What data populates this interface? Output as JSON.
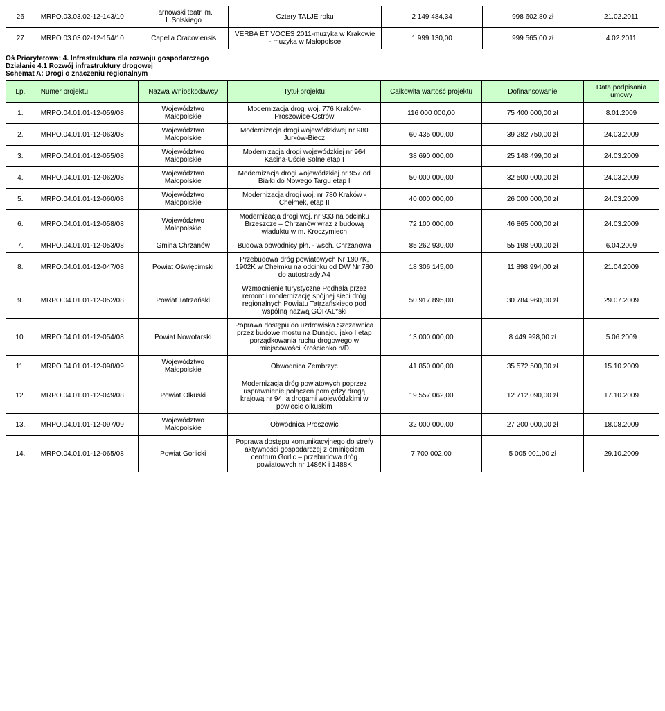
{
  "topRows": [
    {
      "lp": "26",
      "num": "MRPO.03.03.02-12-143/10",
      "wn": "Tarnowski teatr im. L.Solskiego",
      "title": "Cztery TALJE roku",
      "val": "2 149 484,34",
      "dof": "998 602,80 zł",
      "date": "21.02.2011"
    },
    {
      "lp": "27",
      "num": "MRPO.03.03.02-12-154/10",
      "wn": "Capella Cracoviensis",
      "title": "VERBA ET VOCES 2011-muzyka w Krakowie - muzyka w Małopolsce",
      "val": "1 999 130,00",
      "dof": "999 565,00 zł",
      "date": "4.02.2011"
    }
  ],
  "section": {
    "line1": "Oś Priorytetowa: 4. Infrastruktura dla rozwoju gospodarczego",
    "line2": "Działanie 4.1 Rozwój infrastruktury drogowej",
    "line3": "Schemat A: Drogi o znaczeniu regionalnym"
  },
  "headers": {
    "lp": "Lp.",
    "num": "Numer projektu",
    "wn": "Nazwa Wnioskodawcy",
    "title": "Tytuł projektu",
    "val": "Całkowita wartość projektu",
    "dof": "Dofinansowanie",
    "date": "Data podpisania umowy"
  },
  "rows": [
    {
      "lp": "1.",
      "num": "MRPO.04.01.01-12-059/08",
      "wn": "Województwo Małopolskie",
      "title": "Modernizacja drogi woj. 776 Kraków-Proszowice-Ostrów",
      "val": "116 000 000,00",
      "dof": "75 400 000,00 zł",
      "date": "8.01.2009"
    },
    {
      "lp": "2.",
      "num": "MRPO.04.01.01-12-063/08",
      "wn": "Województwo Małopolskie",
      "title": "Modernizacja drogi wojewódzkiwej nr 980 Jurków-Biecz",
      "val": "60 435 000,00",
      "dof": "39 282 750,00 zł",
      "date": "24.03.2009"
    },
    {
      "lp": "3.",
      "num": "MRPO.04.01.01-12-055/08",
      "wn": "Województwo Małopolskie",
      "title": "Modernizacja drogi wojewódzkiej nr 964 Kasina-Uście Solne etap I",
      "val": "38 690 000,00",
      "dof": "25 148 499,00 zł",
      "date": "24.03.2009"
    },
    {
      "lp": "4.",
      "num": "MRPO.04.01.01-12-062/08",
      "wn": "Województwo Małopolskie",
      "title": "Modernizacja drogi wojewódzkiej nr 957 od Białki do Nowego Targu etap I",
      "val": "50 000 000,00",
      "dof": "32 500 000,00 zł",
      "date": "24.03.2009"
    },
    {
      "lp": "5.",
      "num": "MRPO.04.01.01-12-060/08",
      "wn": "Województwo Małopolskie",
      "title": "Modernizacja drogi woj. nr 780 Kraków - Chełmek, etap II",
      "val": "40 000 000,00",
      "dof": "26 000 000,00 zł",
      "date": "24.03.2009"
    },
    {
      "lp": "6.",
      "num": "MRPO.04.01.01-12-058/08",
      "wn": "Województwo Małopolskie",
      "title": "Modernizacja drogi woj. nr 933 na odcinku Brzeszcze – Chrzanów wraz z budową wiaduktu w m. Kroczymiech",
      "val": "72 100 000,00",
      "dof": "46 865 000,00 zł",
      "date": "24.03.2009"
    },
    {
      "lp": "7.",
      "num": "MRPO.04.01.01-12-053/08",
      "wn": "Gmina Chrzanów",
      "title": "Budowa obwodnicy płn. - wsch. Chrzanowa",
      "val": "85 262 930,00",
      "dof": "55 198 900,00 zł",
      "date": "6.04.2009"
    },
    {
      "lp": "8.",
      "num": "MRPO.04.01.01-12-047/08",
      "wn": "Powiat Oświęcimski",
      "title": "Przebudowa dróg powiatowych Nr 1907K, 1902K w Chełmku na odcinku od DW Nr 780 do autostrady A4",
      "val": "18 306 145,00",
      "dof": "11 898 994,00 zł",
      "date": "21.04.2009"
    },
    {
      "lp": "9.",
      "num": "MRPO.04.01.01-12-052/08",
      "wn": "Powiat Tatrzański",
      "title": "Wzmocnienie turystyczne Podhala przez remont i modernizację spójnej sieci dróg regionalnych Powiatu Tatrzańskiego pod wspólną nazwą GÓRAL*ski",
      "val": "50 917 895,00",
      "dof": "30 784 960,00 zł",
      "date": "29.07.2009"
    },
    {
      "lp": "10.",
      "num": "MRPO.04.01.01-12-054/08",
      "wn": "Powiat Nowotarski",
      "title": "Poprawa dostępu do uzdrowiska Szczawnica przez budowę mostu na Dunajcu jako I etap porządkowania ruchu drogowego w miejscowości Krościenko n/D",
      "val": "13 000 000,00",
      "dof": "8 449 998,00 zł",
      "date": "5.06.2009"
    },
    {
      "lp": "11.",
      "num": "MRPO.04.01.01-12-098/09",
      "wn": "Województwo Małopolskie",
      "title": "Obwodnica Zembrzyc",
      "val": "41 850 000,00",
      "dof": "35 572 500,00 zł",
      "date": "15.10.2009"
    },
    {
      "lp": "12.",
      "num": "MRPO.04.01.01-12-049/08",
      "wn": "Powiat Olkuski",
      "title": "Modernizacja dróg powiatowych poprzez usprawnienie połączeń pomiędzy drogą krajową nr 94, a drogami wojewódzkimi w powiecie olkuskim",
      "val": "19 557 062,00",
      "dof": "12 712 090,00 zł",
      "date": "17.10.2009"
    },
    {
      "lp": "13.",
      "num": "MRPO.04.01.01-12-097/09",
      "wn": "Województwo Małopolskie",
      "title": "Obwodnica Proszowic",
      "val": "32 000 000,00",
      "dof": "27 200 000,00 zł",
      "date": "18.08.2009"
    },
    {
      "lp": "14.",
      "num": "MRPO.04.01.01-12-065/08",
      "wn": "Powiat Gorlicki",
      "title": "Poprawa dostępu komunikacyjnego do strefy aktywności gospodarczej z ominięciem centrum Gorlic – przebudowa dróg powiatowych nr 1486K i 1488K",
      "val": "7 700 002,00",
      "dof": "5 005 001,00 zł",
      "date": "29.10.2009"
    }
  ]
}
